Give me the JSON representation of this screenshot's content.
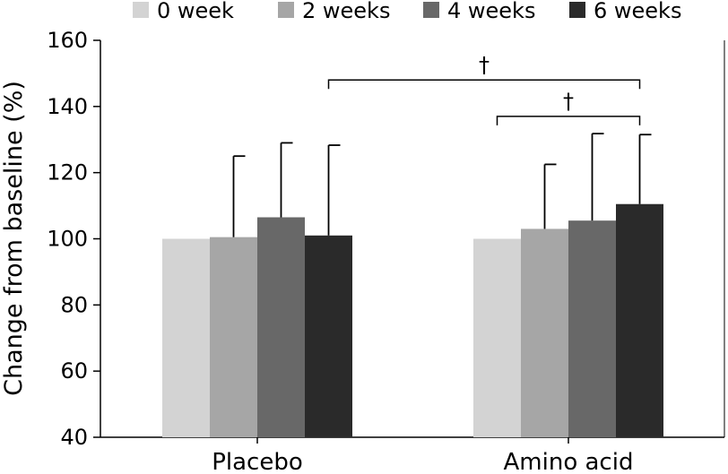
{
  "chart_data": {
    "type": "bar",
    "title": "",
    "xlabel": "",
    "ylabel": "Change from baseline (%)",
    "ylim": [
      40,
      160
    ],
    "yticks": [
      40,
      60,
      80,
      100,
      120,
      140,
      160
    ],
    "grid": false,
    "legend_position": "top",
    "categories": [
      "Placebo",
      "Amino acid"
    ],
    "series": [
      {
        "name": "0 week",
        "color": "#d3d3d3",
        "values": [
          100,
          100
        ],
        "error": [
          null,
          null
        ]
      },
      {
        "name": "2 weeks",
        "color": "#a6a6a6",
        "values": [
          100.5,
          103
        ],
        "error": [
          125,
          122.5
        ]
      },
      {
        "name": "4 weeks",
        "color": "#686868",
        "values": [
          106.5,
          105.5
        ],
        "error": [
          129,
          131.8
        ]
      },
      {
        "name": "6 weeks",
        "color": "#2a2a2a",
        "values": [
          101,
          110.5
        ],
        "error": [
          128.3,
          131.5
        ]
      }
    ],
    "annotations": [
      {
        "label": "†",
        "from": {
          "category": "Placebo",
          "series": "6 weeks"
        },
        "to": {
          "category": "Amino acid",
          "series": "6 weeks"
        },
        "y": 148
      },
      {
        "label": "†",
        "from": {
          "category": "Amino acid",
          "series": "0 week"
        },
        "to": {
          "category": "Amino acid",
          "series": "6 weeks"
        },
        "y": 137
      }
    ]
  }
}
